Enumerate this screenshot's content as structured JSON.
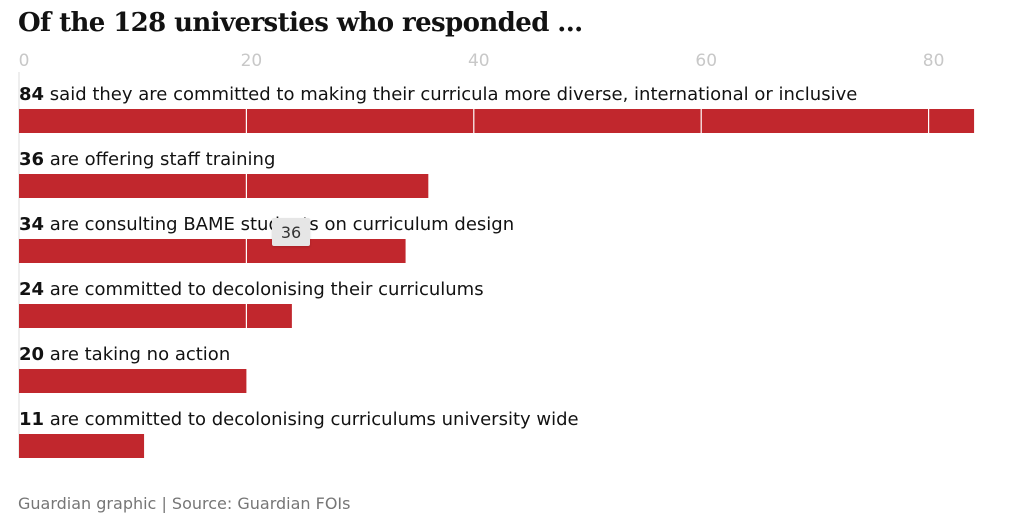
{
  "title": "Of the 128 universties who responded ...",
  "source": "Guardian graphic | Source: Guardian FOIs",
  "tooltip": "36",
  "colors": {
    "bar": "#c1272d",
    "grid": "#ffffff",
    "axis": "#dcdcdc"
  },
  "chart_data": {
    "type": "bar",
    "orientation": "horizontal",
    "xlim": [
      0,
      84
    ],
    "ticks": [
      0,
      20,
      40,
      60,
      80
    ],
    "grid": true,
    "rows": [
      {
        "value": 84,
        "label": "said they are committed to making their curricula more diverse, international or inclusive"
      },
      {
        "value": 36,
        "label": "are offering staff training"
      },
      {
        "value": 34,
        "label": "are consulting BAME students on curriculum design"
      },
      {
        "value": 24,
        "label": "are committed to decolonising their curriculums"
      },
      {
        "value": 20,
        "label": "are taking no action"
      },
      {
        "value": 11,
        "label": "are committed to decolonising curriculums university wide"
      }
    ]
  }
}
